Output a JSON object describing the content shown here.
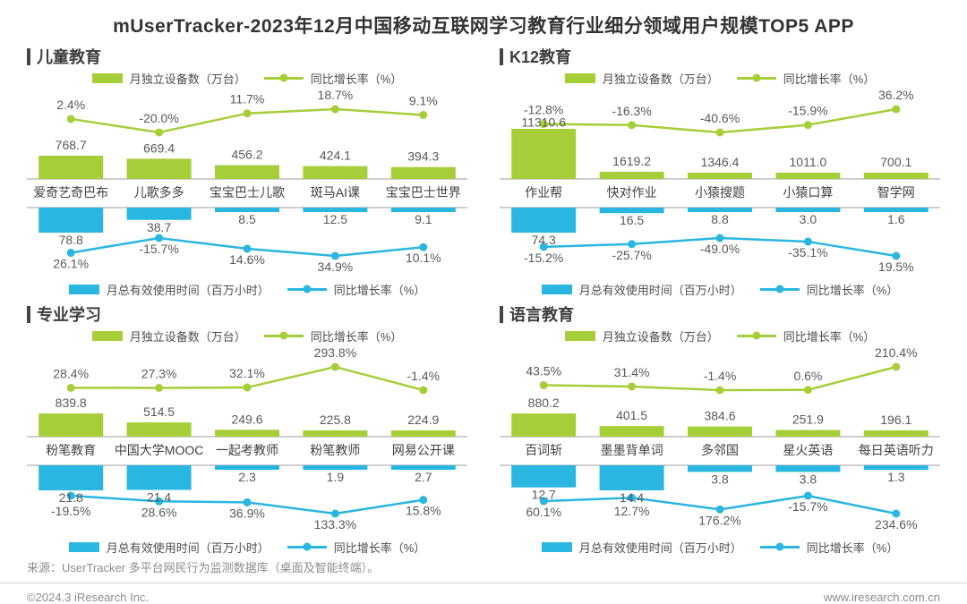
{
  "title": "mUserTracker-2023年12月中国移动互联网学习教育行业细分领域用户规模TOP5 APP",
  "legend": {
    "devices": "月独立设备数（万台）",
    "usage": "月总有效使用时间（百万小时）",
    "growth": "同比增长率（%）"
  },
  "colors": {
    "green": "#a6ce39",
    "blue": "#29b6e0",
    "axis": "#9e9e9e",
    "value_text": "#595959",
    "title_text": "#333333",
    "footer_text": "#8c8c8c"
  },
  "footer": {
    "source": "来源：UserTracker 多平台网民行为监测数据库（桌面及智能终端）。",
    "copyright": "©2024.3 iResearch Inc.",
    "website": "www.iresearch.com.cn"
  },
  "chart_data": [
    {
      "type": "bar+line",
      "section": "儿童教育",
      "legend_position": "top and bottom",
      "categories": [
        "爱奇艺奇巴布",
        "儿歌多多",
        "宝宝巴士儿歌",
        "斑马AI课",
        "宝宝巴士世界"
      ],
      "series": [
        {
          "name": "月独立设备数（万台）",
          "type": "bar",
          "color": "green",
          "values": [
            768.7,
            669.4,
            456.2,
            424.1,
            394.3
          ]
        },
        {
          "name": "同比增长率（%）",
          "type": "line",
          "color": "green",
          "values": [
            2.4,
            -20.0,
            11.7,
            18.7,
            9.1
          ]
        },
        {
          "name": "月总有效使用时间（百万小时）",
          "type": "bar",
          "color": "blue",
          "mirrored": true,
          "values": [
            78.8,
            38.7,
            8.5,
            12.5,
            9.1
          ]
        },
        {
          "name": "同比增长率（%）",
          "type": "line",
          "color": "blue",
          "mirrored": true,
          "values": [
            26.1,
            -15.7,
            14.6,
            34.9,
            10.1
          ]
        }
      ]
    },
    {
      "type": "bar+line",
      "section": "K12教育",
      "legend_position": "top and bottom",
      "categories": [
        "作业帮",
        "快对作业",
        "小猿搜题",
        "小猿口算",
        "智学网"
      ],
      "series": [
        {
          "name": "月独立设备数（万台）",
          "type": "bar",
          "color": "green",
          "values": [
            11310.6,
            1619.2,
            1346.4,
            1011.0,
            700.1
          ]
        },
        {
          "name": "同比增长率（%）",
          "type": "line",
          "color": "green",
          "values": [
            -12.8,
            -16.3,
            -40.6,
            -15.9,
            36.2
          ]
        },
        {
          "name": "月总有效使用时间（百万小时）",
          "type": "bar",
          "color": "blue",
          "mirrored": true,
          "values": [
            74.3,
            16.5,
            8.8,
            3.0,
            1.6
          ]
        },
        {
          "name": "同比增长率（%）",
          "type": "line",
          "color": "blue",
          "mirrored": true,
          "values": [
            -15.2,
            -25.7,
            -49.0,
            -35.1,
            19.5
          ]
        }
      ]
    },
    {
      "type": "bar+line",
      "section": "专业学习",
      "legend_position": "top and bottom",
      "categories": [
        "粉笔教育",
        "中国大学MOOC",
        "一起考教师",
        "粉笔教师",
        "网易公开课"
      ],
      "series": [
        {
          "name": "月独立设备数（万台）",
          "type": "bar",
          "color": "green",
          "values": [
            839.8,
            514.5,
            249.6,
            225.8,
            224.9
          ]
        },
        {
          "name": "同比增长率（%）",
          "type": "line",
          "color": "green",
          "values": [
            28.4,
            27.3,
            32.1,
            293.8,
            -1.4
          ]
        },
        {
          "name": "月总有效使用时间（百万小时）",
          "type": "bar",
          "color": "blue",
          "mirrored": true,
          "values": [
            21.8,
            21.4,
            2.3,
            1.9,
            2.7
          ]
        },
        {
          "name": "同比增长率（%）",
          "type": "line",
          "color": "blue",
          "mirrored": true,
          "values": [
            -19.5,
            28.6,
            36.9,
            133.3,
            15.8
          ]
        }
      ]
    },
    {
      "type": "bar+line",
      "section": "语言教育",
      "legend_position": "top and bottom",
      "categories": [
        "百词斩",
        "墨墨背单词",
        "多邻国",
        "星火英语",
        "每日英语听力"
      ],
      "series": [
        {
          "name": "月独立设备数（万台）",
          "type": "bar",
          "color": "green",
          "values": [
            880.2,
            401.5,
            384.6,
            251.9,
            196.1
          ]
        },
        {
          "name": "同比增长率（%）",
          "type": "line",
          "color": "green",
          "values": [
            43.5,
            31.4,
            -1.4,
            0.6,
            210.4
          ]
        },
        {
          "name": "月总有效使用时间（百万小时）",
          "type": "bar",
          "color": "blue",
          "mirrored": true,
          "values": [
            12.7,
            14.4,
            3.8,
            3.8,
            1.3
          ]
        },
        {
          "name": "同比增长率（%）",
          "type": "line",
          "color": "blue",
          "mirrored": true,
          "values": [
            60.1,
            12.7,
            176.2,
            -15.7,
            234.6
          ]
        }
      ]
    }
  ]
}
